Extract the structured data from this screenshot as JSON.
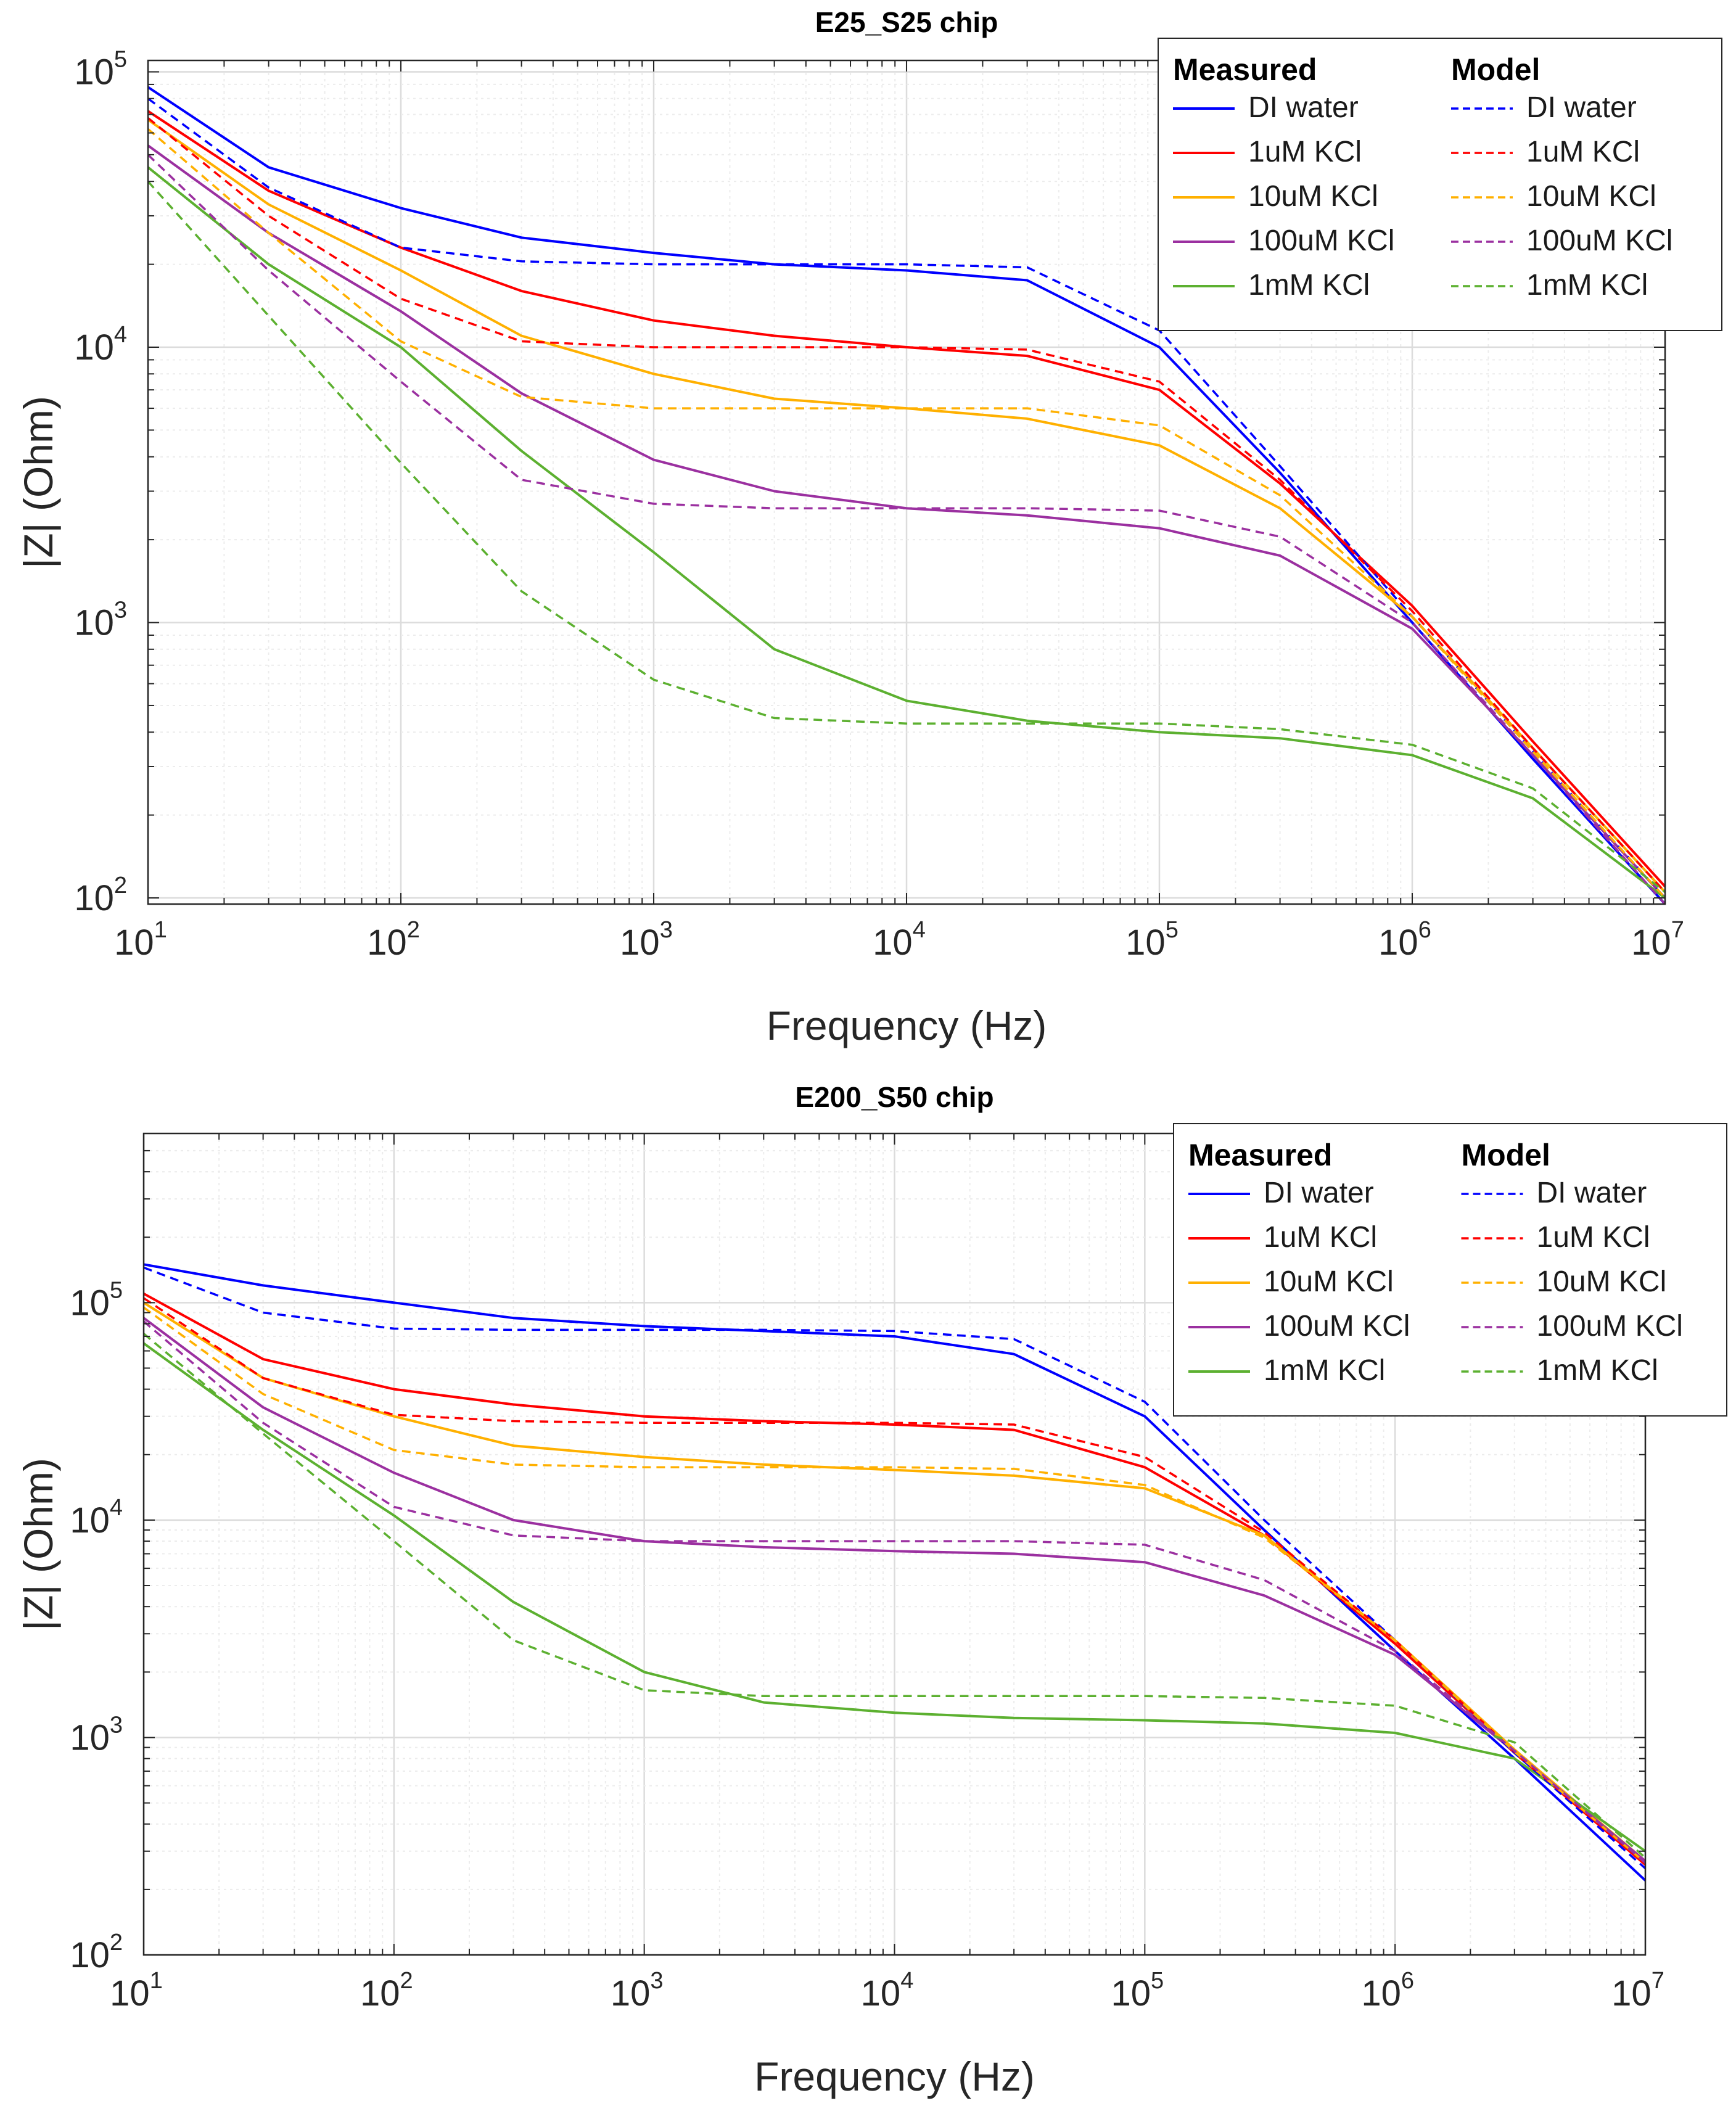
{
  "chart_data": [
    {
      "type": "line",
      "title": "E25_S25 chip",
      "xlabel": "Frequency (Hz)",
      "ylabel": "|Z| (Ohm)",
      "xscale": "log",
      "yscale": "log",
      "xlim": [
        10,
        10000000
      ],
      "ylim": [
        95,
        110000
      ],
      "grid": true,
      "legend_position": "top-right",
      "legend_headers": [
        "Measured",
        "Model"
      ],
      "x_ticks": [
        {
          "base": "10",
          "exp": "1"
        },
        {
          "base": "10",
          "exp": "2"
        },
        {
          "base": "10",
          "exp": "3"
        },
        {
          "base": "10",
          "exp": "4"
        },
        {
          "base": "10",
          "exp": "5"
        },
        {
          "base": "10",
          "exp": "6"
        },
        {
          "base": "10",
          "exp": "7"
        }
      ],
      "y_ticks": [
        {
          "base": "10",
          "exp": "2"
        },
        {
          "base": "10",
          "exp": "3"
        },
        {
          "base": "10",
          "exp": "4"
        },
        {
          "base": "10",
          "exp": "5"
        }
      ],
      "series": [
        {
          "name": "DI water",
          "group": "Measured",
          "style": "solid",
          "color": "#0000ff",
          "x": [
            10,
            30,
            100,
            300,
            1000,
            3000,
            10000,
            30000,
            100000,
            300000,
            1000000,
            3000000,
            10000000
          ],
          "y": [
            88000,
            45000,
            32000,
            25000,
            22000,
            20000,
            19000,
            17500,
            10000,
            3500,
            1000,
            320,
            95
          ]
        },
        {
          "name": "1uM KCl",
          "group": "Measured",
          "style": "solid",
          "color": "#ff0000",
          "x": [
            10,
            30,
            100,
            300,
            1000,
            3000,
            10000,
            30000,
            100000,
            300000,
            1000000,
            3000000,
            10000000
          ],
          "y": [
            72000,
            37000,
            23000,
            16000,
            12500,
            11000,
            10000,
            9300,
            7000,
            3200,
            1150,
            370,
            110
          ]
        },
        {
          "name": "10uM KCl",
          "group": "Measured",
          "style": "solid",
          "color": "#ffb000",
          "x": [
            10,
            30,
            100,
            300,
            1000,
            3000,
            10000,
            30000,
            100000,
            300000,
            1000000,
            3000000,
            10000000
          ],
          "y": [
            67000,
            33000,
            19000,
            11000,
            8000,
            6500,
            6000,
            5500,
            4400,
            2600,
            1050,
            350,
            105
          ]
        },
        {
          "name": "100uM KCl",
          "group": "Measured",
          "style": "solid",
          "color": "#9b30a0",
          "x": [
            10,
            30,
            100,
            300,
            1000,
            3000,
            10000,
            30000,
            100000,
            300000,
            1000000,
            3000000,
            10000000
          ],
          "y": [
            54000,
            26000,
            13500,
            6800,
            3900,
            3000,
            2600,
            2450,
            2200,
            1750,
            950,
            330,
            100
          ]
        },
        {
          "name": "1mM KCl",
          "group": "Measured",
          "style": "solid",
          "color": "#5cb030",
          "x": [
            10,
            30,
            100,
            300,
            1000,
            3000,
            10000,
            30000,
            100000,
            300000,
            1000000,
            3000000,
            10000000
          ],
          "y": [
            45000,
            20000,
            10000,
            4200,
            1800,
            800,
            520,
            440,
            400,
            380,
            330,
            230,
            100
          ]
        },
        {
          "name": "DI water",
          "group": "Model",
          "style": "dashed",
          "color": "#0000ff",
          "x": [
            10,
            30,
            100,
            300,
            1000,
            3000,
            10000,
            30000,
            100000,
            300000,
            1000000,
            3000000,
            10000000
          ],
          "y": [
            80000,
            38000,
            23000,
            20500,
            20000,
            20000,
            20000,
            19500,
            11500,
            3700,
            1050,
            340,
            100
          ]
        },
        {
          "name": "1uM KCl",
          "group": "Model",
          "style": "dashed",
          "color": "#ff0000",
          "x": [
            10,
            30,
            100,
            300,
            1000,
            3000,
            10000,
            30000,
            100000,
            300000,
            1000000,
            3000000,
            10000000
          ],
          "y": [
            68000,
            30000,
            15000,
            10500,
            10000,
            10000,
            10000,
            9800,
            7500,
            3300,
            1100,
            350,
            105
          ]
        },
        {
          "name": "10uM KCl",
          "group": "Model",
          "style": "dashed",
          "color": "#ffb000",
          "x": [
            10,
            30,
            100,
            300,
            1000,
            3000,
            10000,
            30000,
            100000,
            300000,
            1000000,
            3000000,
            10000000
          ],
          "y": [
            62000,
            26000,
            10500,
            6600,
            6000,
            6000,
            6000,
            6000,
            5200,
            2900,
            1050,
            340,
            100
          ]
        },
        {
          "name": "100uM KCl",
          "group": "Model",
          "style": "dashed",
          "color": "#9b30a0",
          "x": [
            10,
            30,
            100,
            300,
            1000,
            3000,
            10000,
            30000,
            100000,
            300000,
            1000000,
            3000000,
            10000000
          ],
          "y": [
            50000,
            19000,
            7500,
            3300,
            2700,
            2600,
            2600,
            2600,
            2550,
            2050,
            1000,
            330,
            95
          ]
        },
        {
          "name": "1mM KCl",
          "group": "Model",
          "style": "dashed",
          "color": "#5cb030",
          "x": [
            10,
            30,
            100,
            300,
            1000,
            3000,
            10000,
            30000,
            100000,
            300000,
            1000000,
            3000000,
            10000000
          ],
          "y": [
            40000,
            13000,
            3800,
            1300,
            620,
            450,
            430,
            430,
            430,
            410,
            360,
            250,
            105
          ]
        }
      ]
    },
    {
      "type": "line",
      "title": "E200_S50 chip",
      "xlabel": "Frequency (Hz)",
      "ylabel": "|Z| (Ohm)",
      "xscale": "log",
      "yscale": "log",
      "xlim": [
        10,
        10000000
      ],
      "ylim": [
        100,
        600000
      ],
      "grid": true,
      "legend_position": "top-right",
      "legend_headers": [
        "Measured",
        "Model"
      ],
      "x_ticks": [
        {
          "base": "10",
          "exp": "1"
        },
        {
          "base": "10",
          "exp": "2"
        },
        {
          "base": "10",
          "exp": "3"
        },
        {
          "base": "10",
          "exp": "4"
        },
        {
          "base": "10",
          "exp": "5"
        },
        {
          "base": "10",
          "exp": "6"
        },
        {
          "base": "10",
          "exp": "7"
        }
      ],
      "y_ticks": [
        {
          "base": "10",
          "exp": "2"
        },
        {
          "base": "10",
          "exp": "3"
        },
        {
          "base": "10",
          "exp": "4"
        },
        {
          "base": "10",
          "exp": "5"
        }
      ],
      "series": [
        {
          "name": "DI water",
          "group": "Measured",
          "style": "solid",
          "color": "#0000ff",
          "x": [
            10,
            30,
            100,
            300,
            1000,
            3000,
            10000,
            30000,
            100000,
            300000,
            1000000,
            3000000,
            10000000
          ],
          "y": [
            150000,
            120000,
            100000,
            85000,
            78000,
            74000,
            70000,
            58000,
            30000,
            9000,
            2500,
            800,
            220
          ]
        },
        {
          "name": "1uM KCl",
          "group": "Measured",
          "style": "solid",
          "color": "#ff0000",
          "x": [
            10,
            30,
            100,
            300,
            1000,
            3000,
            10000,
            30000,
            100000,
            300000,
            1000000,
            3000000,
            10000000
          ],
          "y": [
            110000,
            55000,
            40000,
            34000,
            30000,
            28500,
            27500,
            26000,
            17500,
            8500,
            2700,
            850,
            260
          ]
        },
        {
          "name": "10uM KCl",
          "group": "Measured",
          "style": "solid",
          "color": "#ffb000",
          "x": [
            10,
            30,
            100,
            300,
            1000,
            3000,
            10000,
            30000,
            100000,
            300000,
            1000000,
            3000000,
            10000000
          ],
          "y": [
            100000,
            45000,
            30000,
            22000,
            19500,
            18000,
            17000,
            16000,
            14000,
            8500,
            2800,
            880,
            270
          ]
        },
        {
          "name": "100uM KCl",
          "group": "Measured",
          "style": "solid",
          "color": "#9b30a0",
          "x": [
            10,
            30,
            100,
            300,
            1000,
            3000,
            10000,
            30000,
            100000,
            300000,
            1000000,
            3000000,
            10000000
          ],
          "y": [
            85000,
            33000,
            16500,
            10000,
            8000,
            7500,
            7200,
            7000,
            6400,
            4500,
            2400,
            860,
            270
          ]
        },
        {
          "name": "1mM KCl",
          "group": "Measured",
          "style": "solid",
          "color": "#5cb030",
          "x": [
            10,
            30,
            100,
            300,
            1000,
            3000,
            10000,
            30000,
            100000,
            300000,
            1000000,
            3000000,
            10000000
          ],
          "y": [
            65000,
            26000,
            10500,
            4200,
            2000,
            1450,
            1300,
            1230,
            1200,
            1160,
            1050,
            800,
            300
          ]
        },
        {
          "name": "DI water",
          "group": "Model",
          "style": "dashed",
          "color": "#0000ff",
          "x": [
            10,
            30,
            100,
            300,
            1000,
            3000,
            10000,
            30000,
            100000,
            300000,
            1000000,
            3000000,
            10000000
          ],
          "y": [
            145000,
            90000,
            76000,
            75000,
            75000,
            75000,
            74000,
            68000,
            35000,
            10000,
            2800,
            850,
            250
          ]
        },
        {
          "name": "1uM KCl",
          "group": "Model",
          "style": "dashed",
          "color": "#ff0000",
          "x": [
            10,
            30,
            100,
            300,
            1000,
            3000,
            10000,
            30000,
            100000,
            300000,
            1000000,
            3000000,
            10000000
          ],
          "y": [
            105000,
            45000,
            30500,
            28500,
            28000,
            28000,
            28000,
            27500,
            19500,
            8800,
            2800,
            860,
            260
          ]
        },
        {
          "name": "10uM KCl",
          "group": "Model",
          "style": "dashed",
          "color": "#ffb000",
          "x": [
            10,
            30,
            100,
            300,
            1000,
            3000,
            10000,
            30000,
            100000,
            300000,
            1000000,
            3000000,
            10000000
          ],
          "y": [
            95000,
            38000,
            21000,
            18000,
            17500,
            17500,
            17500,
            17200,
            14500,
            8300,
            2800,
            860,
            265
          ]
        },
        {
          "name": "100uM KCl",
          "group": "Model",
          "style": "dashed",
          "color": "#9b30a0",
          "x": [
            10,
            30,
            100,
            300,
            1000,
            3000,
            10000,
            30000,
            100000,
            300000,
            1000000,
            3000000,
            10000000
          ],
          "y": [
            82000,
            28000,
            11500,
            8500,
            8000,
            8000,
            8000,
            8000,
            7700,
            5300,
            2500,
            870,
            265
          ]
        },
        {
          "name": "1mM KCl",
          "group": "Model",
          "style": "dashed",
          "color": "#5cb030",
          "x": [
            10,
            30,
            100,
            300,
            1000,
            3000,
            10000,
            30000,
            100000,
            300000,
            1000000,
            3000000,
            10000000
          ],
          "y": [
            72000,
            25000,
            8000,
            2800,
            1650,
            1550,
            1550,
            1550,
            1550,
            1520,
            1400,
            950,
            280
          ]
        }
      ]
    }
  ]
}
